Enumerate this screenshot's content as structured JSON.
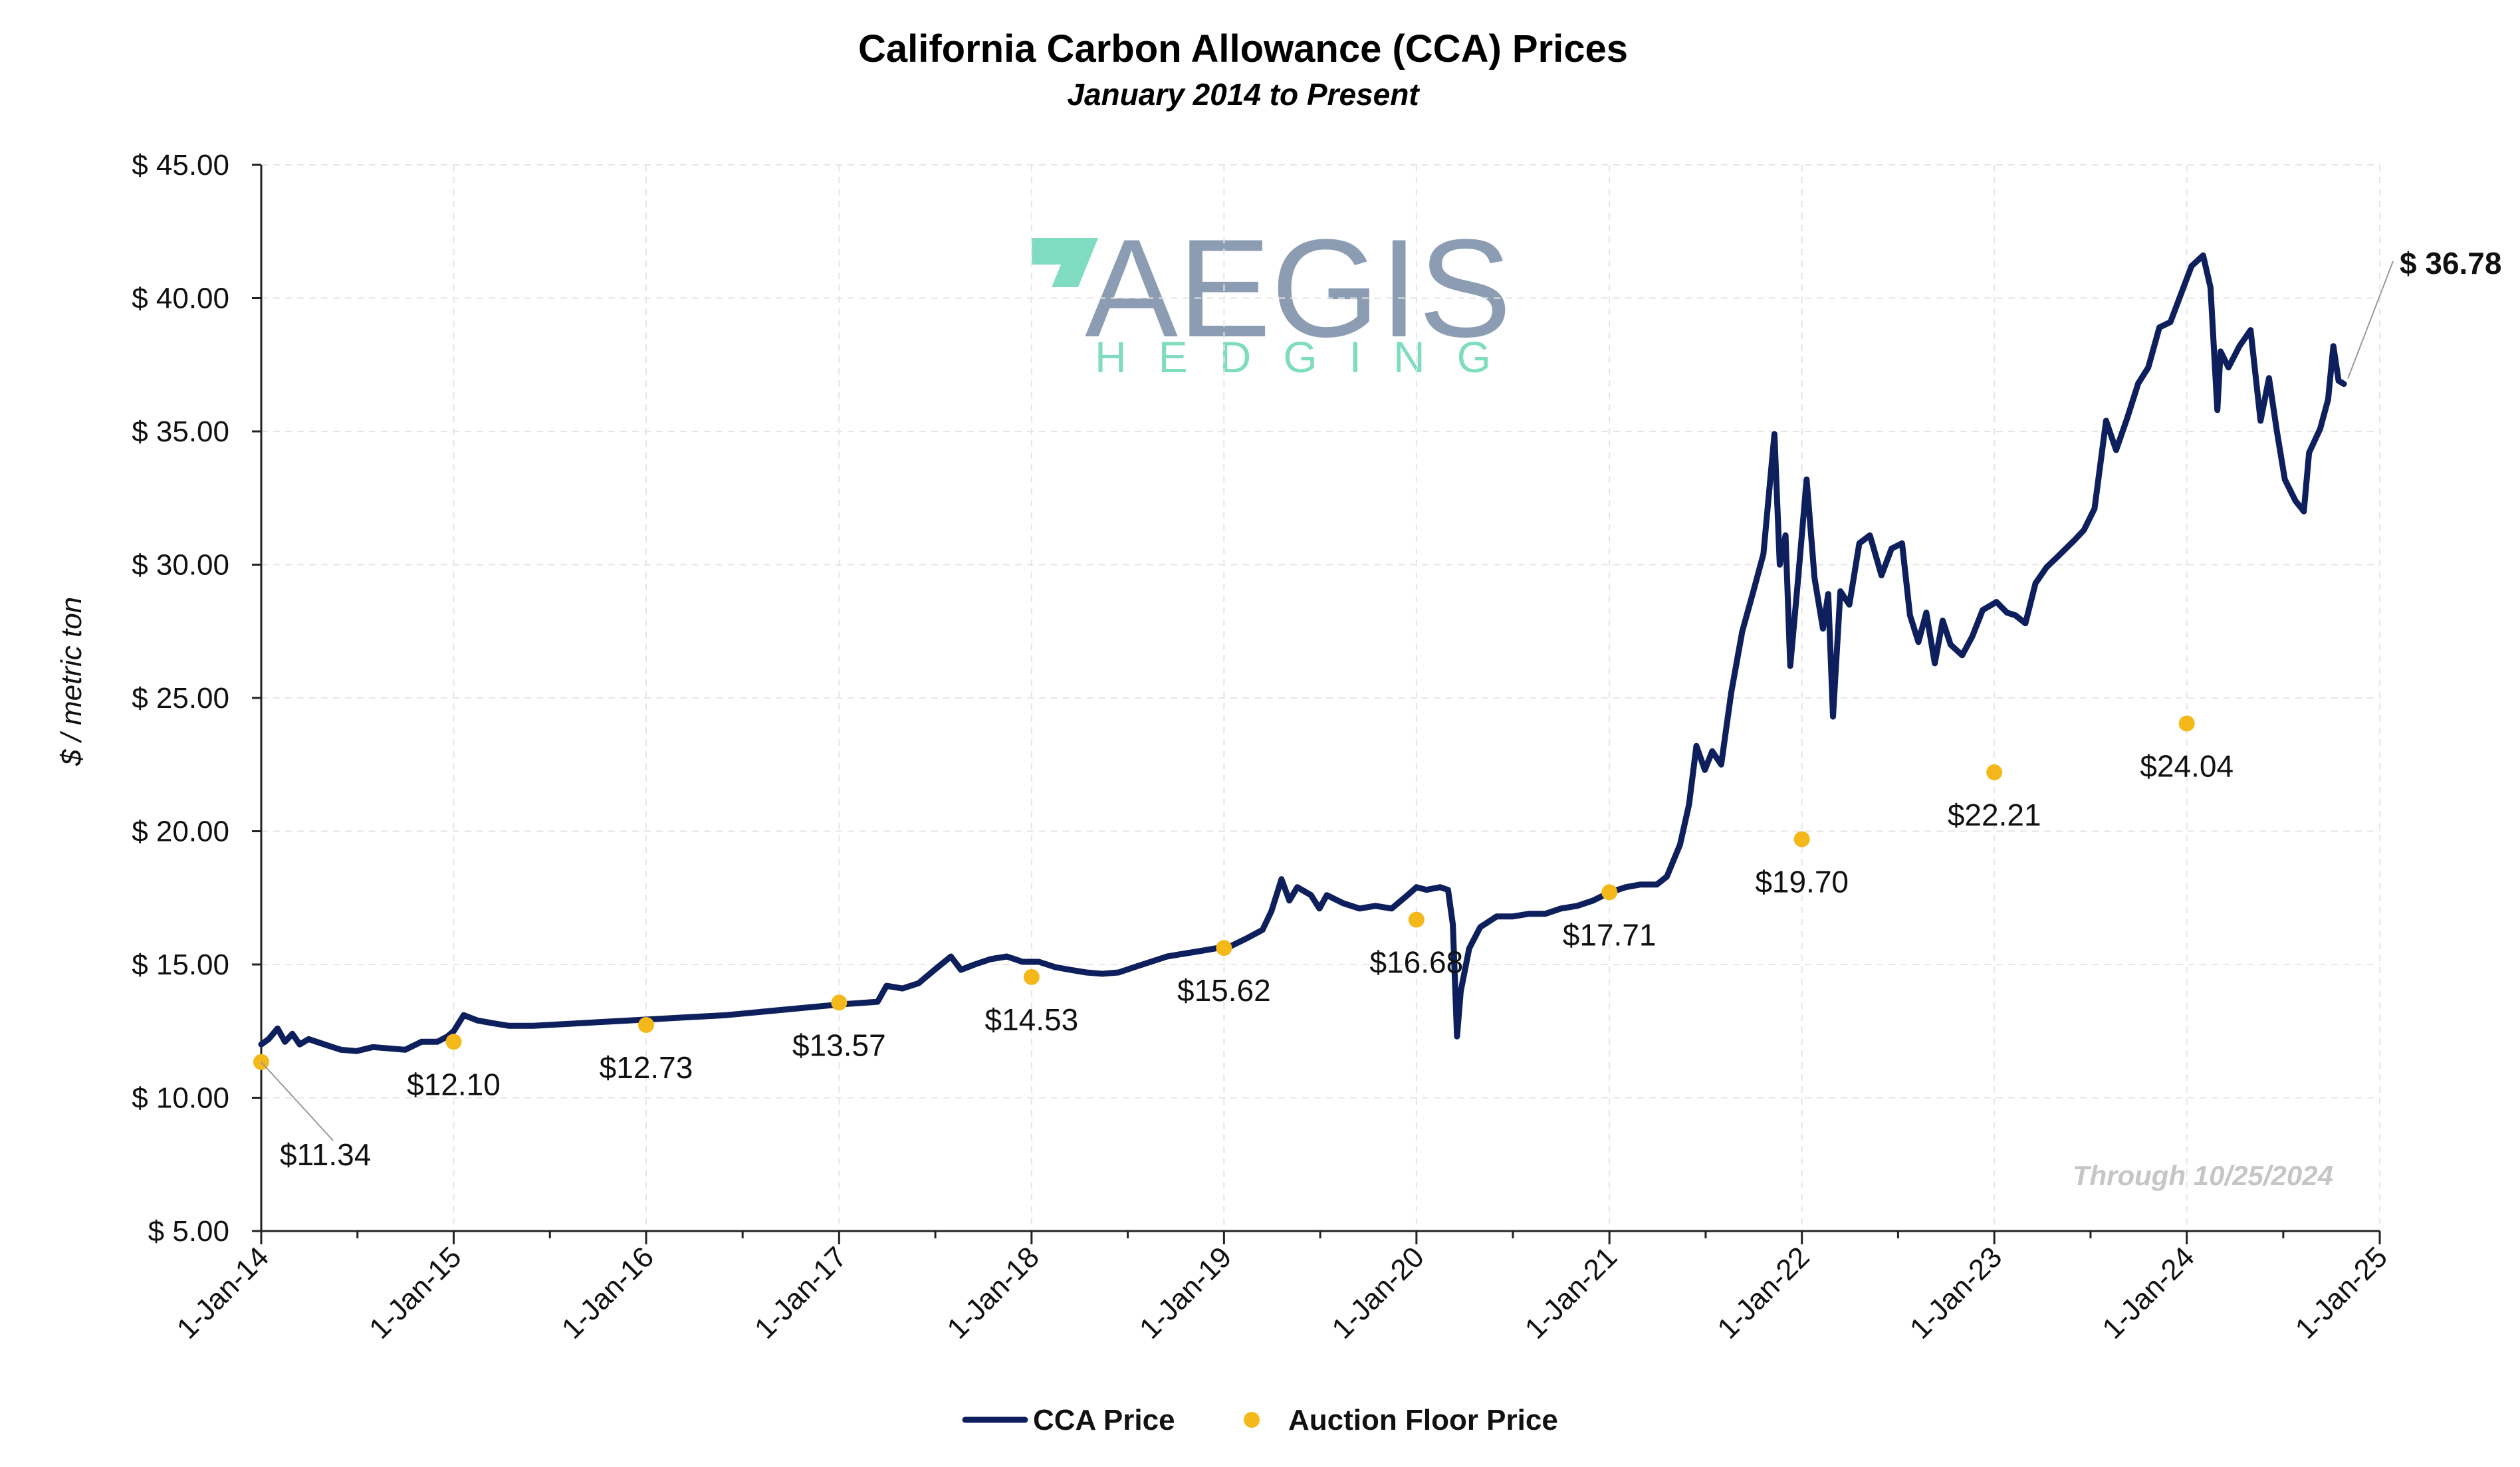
{
  "chart_data": {
    "type": "line",
    "title": "California Carbon Allowance (CCA) Prices",
    "subtitle": "January 2014 to Present",
    "ylabel": "$ / metric ton",
    "xlabel": "",
    "ylim": [
      5,
      45
    ],
    "yticks": [
      {
        "value": 45,
        "label": "$ 45.00"
      },
      {
        "value": 40,
        "label": "$ 40.00"
      },
      {
        "value": 35,
        "label": "$ 35.00"
      },
      {
        "value": 30,
        "label": "$ 30.00"
      },
      {
        "value": 25,
        "label": "$ 25.00"
      },
      {
        "value": 20,
        "label": "$ 20.00"
      },
      {
        "value": 15,
        "label": "$ 15.00"
      },
      {
        "value": 10,
        "label": "$ 10.00"
      },
      {
        "value": 5,
        "label": "$ 5.00"
      }
    ],
    "xlim": [
      "2014-01-01",
      "2025-01-01"
    ],
    "xticks": [
      {
        "date": "2014-01-01",
        "label": "1-Jan-14"
      },
      {
        "date": "2015-01-01",
        "label": "1-Jan-15"
      },
      {
        "date": "2016-01-01",
        "label": "1-Jan-16"
      },
      {
        "date": "2017-01-01",
        "label": "1-Jan-17"
      },
      {
        "date": "2018-01-01",
        "label": "1-Jan-18"
      },
      {
        "date": "2019-01-01",
        "label": "1-Jan-19"
      },
      {
        "date": "2020-01-01",
        "label": "1-Jan-20"
      },
      {
        "date": "2021-01-01",
        "label": "1-Jan-21"
      },
      {
        "date": "2022-01-01",
        "label": "1-Jan-22"
      },
      {
        "date": "2023-01-01",
        "label": "1-Jan-23"
      },
      {
        "date": "2024-01-01",
        "label": "1-Jan-24"
      },
      {
        "date": "2025-01-01",
        "label": "1-Jan-25"
      }
    ],
    "grid": true,
    "legend_position": "bottom",
    "series": [
      {
        "name": "CCA Price",
        "kind": "line",
        "color": "#0d1f5c",
        "points": [
          [
            "2014-01-01",
            12.0
          ],
          [
            "2014-01-15",
            12.2
          ],
          [
            "2014-02-01",
            12.6
          ],
          [
            "2014-02-15",
            12.1
          ],
          [
            "2014-03-01",
            12.4
          ],
          [
            "2014-03-15",
            12.0
          ],
          [
            "2014-04-01",
            12.2
          ],
          [
            "2014-05-01",
            12.0
          ],
          [
            "2014-06-01",
            11.8
          ],
          [
            "2014-07-01",
            11.75
          ],
          [
            "2014-08-01",
            11.9
          ],
          [
            "2014-09-01",
            11.85
          ],
          [
            "2014-10-01",
            11.8
          ],
          [
            "2014-11-01",
            12.1
          ],
          [
            "2014-12-01",
            12.1
          ],
          [
            "2014-12-20",
            12.3
          ],
          [
            "2015-01-01",
            12.5
          ],
          [
            "2015-01-20",
            13.1
          ],
          [
            "2015-02-15",
            12.9
          ],
          [
            "2015-03-15",
            12.8
          ],
          [
            "2015-04-15",
            12.7
          ],
          [
            "2015-06-01",
            12.7
          ],
          [
            "2016-06-01",
            13.1
          ],
          [
            "2017-01-01",
            13.5
          ],
          [
            "2017-03-15",
            13.6
          ],
          [
            "2017-04-01",
            14.2
          ],
          [
            "2017-05-01",
            14.1
          ],
          [
            "2017-06-01",
            14.3
          ],
          [
            "2017-07-01",
            14.8
          ],
          [
            "2017-08-01",
            15.3
          ],
          [
            "2017-08-20",
            14.8
          ],
          [
            "2017-09-15",
            15.0
          ],
          [
            "2017-10-15",
            15.2
          ],
          [
            "2017-11-15",
            15.3
          ],
          [
            "2017-12-15",
            15.1
          ],
          [
            "2018-01-15",
            15.1
          ],
          [
            "2018-02-15",
            14.9
          ],
          [
            "2018-03-15",
            14.8
          ],
          [
            "2018-04-15",
            14.7
          ],
          [
            "2018-05-15",
            14.65
          ],
          [
            "2018-06-15",
            14.7
          ],
          [
            "2018-07-15",
            14.9
          ],
          [
            "2018-08-15",
            15.1
          ],
          [
            "2018-09-15",
            15.3
          ],
          [
            "2018-10-15",
            15.4
          ],
          [
            "2018-11-15",
            15.5
          ],
          [
            "2018-12-15",
            15.6
          ],
          [
            "2019-01-15",
            15.7
          ],
          [
            "2019-02-15",
            16.0
          ],
          [
            "2019-03-15",
            16.3
          ],
          [
            "2019-04-01",
            17.0
          ],
          [
            "2019-04-20",
            18.2
          ],
          [
            "2019-05-05",
            17.4
          ],
          [
            "2019-05-20",
            17.9
          ],
          [
            "2019-06-15",
            17.6
          ],
          [
            "2019-07-01",
            17.1
          ],
          [
            "2019-07-15",
            17.6
          ],
          [
            "2019-08-15",
            17.3
          ],
          [
            "2019-09-15",
            17.1
          ],
          [
            "2019-10-15",
            17.2
          ],
          [
            "2019-11-15",
            17.1
          ],
          [
            "2019-12-15",
            17.6
          ],
          [
            "2020-01-01",
            17.9
          ],
          [
            "2020-01-20",
            17.8
          ],
          [
            "2020-02-15",
            17.9
          ],
          [
            "2020-03-01",
            17.8
          ],
          [
            "2020-03-10",
            16.5
          ],
          [
            "2020-03-18",
            12.3
          ],
          [
            "2020-03-25",
            14.0
          ],
          [
            "2020-04-10",
            15.6
          ],
          [
            "2020-05-01",
            16.4
          ],
          [
            "2020-06-01",
            16.8
          ],
          [
            "2020-07-01",
            16.8
          ],
          [
            "2020-08-01",
            16.9
          ],
          [
            "2020-09-01",
            16.9
          ],
          [
            "2020-10-01",
            17.1
          ],
          [
            "2020-11-01",
            17.2
          ],
          [
            "2020-12-01",
            17.4
          ],
          [
            "2021-01-01",
            17.7
          ],
          [
            "2021-02-01",
            17.9
          ],
          [
            "2021-03-01",
            18.0
          ],
          [
            "2021-04-01",
            18.0
          ],
          [
            "2021-04-20",
            18.3
          ],
          [
            "2021-05-15",
            19.5
          ],
          [
            "2021-06-01",
            21.0
          ],
          [
            "2021-06-15",
            23.2
          ],
          [
            "2021-07-01",
            22.3
          ],
          [
            "2021-07-15",
            23.0
          ],
          [
            "2021-08-01",
            22.5
          ],
          [
            "2021-08-20",
            25.2
          ],
          [
            "2021-09-10",
            27.5
          ],
          [
            "2021-10-01",
            29.0
          ],
          [
            "2021-10-20",
            30.4
          ],
          [
            "2021-11-10",
            34.9
          ],
          [
            "2021-11-20",
            30.0
          ],
          [
            "2021-12-01",
            31.1
          ],
          [
            "2021-12-10",
            26.2
          ],
          [
            "2021-12-25",
            29.5
          ],
          [
            "2022-01-10",
            33.2
          ],
          [
            "2022-01-25",
            29.5
          ],
          [
            "2022-02-10",
            27.6
          ],
          [
            "2022-02-20",
            28.9
          ],
          [
            "2022-03-01",
            24.3
          ],
          [
            "2022-03-15",
            29.0
          ],
          [
            "2022-04-01",
            28.5
          ],
          [
            "2022-04-20",
            30.8
          ],
          [
            "2022-05-10",
            31.1
          ],
          [
            "2022-06-01",
            29.6
          ],
          [
            "2022-06-20",
            30.6
          ],
          [
            "2022-07-10",
            30.8
          ],
          [
            "2022-07-25",
            28.1
          ],
          [
            "2022-08-10",
            27.1
          ],
          [
            "2022-08-25",
            28.2
          ],
          [
            "2022-09-10",
            26.3
          ],
          [
            "2022-09-25",
            27.9
          ],
          [
            "2022-10-10",
            27.0
          ],
          [
            "2022-11-01",
            26.6
          ],
          [
            "2022-11-20",
            27.3
          ],
          [
            "2022-12-10",
            28.3
          ],
          [
            "2023-01-05",
            28.6
          ],
          [
            "2023-01-25",
            28.2
          ],
          [
            "2023-02-10",
            28.1
          ],
          [
            "2023-03-01",
            27.8
          ],
          [
            "2023-03-20",
            29.3
          ],
          [
            "2023-04-10",
            29.9
          ],
          [
            "2023-05-01",
            30.3
          ],
          [
            "2023-06-01",
            30.9
          ],
          [
            "2023-06-20",
            31.3
          ],
          [
            "2023-07-10",
            32.1
          ],
          [
            "2023-08-01",
            35.4
          ],
          [
            "2023-08-20",
            34.3
          ],
          [
            "2023-09-10",
            35.5
          ],
          [
            "2023-10-01",
            36.8
          ],
          [
            "2023-10-20",
            37.4
          ],
          [
            "2023-11-10",
            38.9
          ],
          [
            "2023-12-01",
            39.1
          ],
          [
            "2023-12-20",
            40.1
          ],
          [
            "2024-01-10",
            41.2
          ],
          [
            "2024-02-01",
            41.6
          ],
          [
            "2024-02-15",
            40.4
          ],
          [
            "2024-02-28",
            35.8
          ],
          [
            "2024-03-05",
            38.0
          ],
          [
            "2024-03-20",
            37.4
          ],
          [
            "2024-04-10",
            38.2
          ],
          [
            "2024-05-01",
            38.8
          ],
          [
            "2024-05-20",
            35.4
          ],
          [
            "2024-06-05",
            37.0
          ],
          [
            "2024-06-20",
            35.0
          ],
          [
            "2024-07-05",
            33.2
          ],
          [
            "2024-07-25",
            32.4
          ],
          [
            "2024-08-10",
            32.0
          ],
          [
            "2024-08-20",
            34.2
          ],
          [
            "2024-09-10",
            35.1
          ],
          [
            "2024-09-25",
            36.2
          ],
          [
            "2024-10-05",
            38.2
          ],
          [
            "2024-10-15",
            36.9
          ],
          [
            "2024-10-25",
            36.78
          ]
        ]
      },
      {
        "name": "Auction Floor Price",
        "kind": "scatter",
        "color": "#f5b81b",
        "points": [
          [
            "2014-01-01",
            11.34
          ],
          [
            "2015-01-01",
            12.1
          ],
          [
            "2016-01-01",
            12.73
          ],
          [
            "2017-01-01",
            13.57
          ],
          [
            "2018-01-01",
            14.53
          ],
          [
            "2019-01-01",
            15.62
          ],
          [
            "2020-01-01",
            16.68
          ],
          [
            "2021-01-01",
            17.71
          ],
          [
            "2022-01-01",
            19.7
          ],
          [
            "2023-01-01",
            22.21
          ],
          [
            "2024-01-01",
            24.04
          ]
        ],
        "labels": [
          "$11.34",
          "$12.10",
          "$12.73",
          "$13.57",
          "$14.53",
          "$15.62",
          "$16.68",
          "$17.71",
          "$19.70",
          "$22.21",
          "$24.04"
        ]
      }
    ],
    "last_value_label": "$ 36.78",
    "annotation": "Through 10/25/2024"
  },
  "watermark": {
    "main": "AEGIS",
    "sub": "HEDGING",
    "mark_color": "#7fdcc0",
    "main_color": "#8c9db3"
  }
}
